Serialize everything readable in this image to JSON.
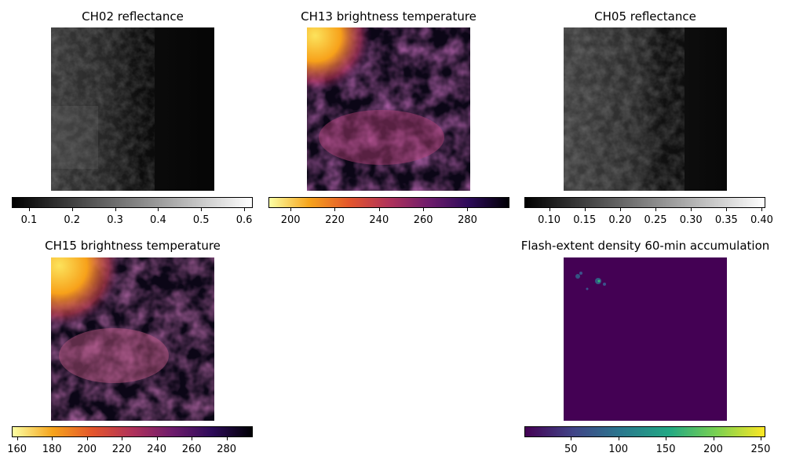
{
  "chart_data": [
    {
      "type": "heatmap",
      "title": "CH02 reflectance",
      "colormap": "gray",
      "colorbar_range": [
        0.06,
        0.62
      ],
      "colorbar_ticks": [
        "0.1",
        "0.2",
        "0.3",
        "0.4",
        "0.5",
        "0.6"
      ],
      "colorbar_tick_values": [
        0.1,
        0.2,
        0.3,
        0.4,
        0.5,
        0.6
      ]
    },
    {
      "type": "heatmap",
      "title": "CH13 brightness temperature",
      "colormap": "inferno_r",
      "colorbar_range": [
        190,
        299
      ],
      "colorbar_ticks": [
        "200",
        "220",
        "240",
        "260",
        "280"
      ],
      "colorbar_tick_values": [
        200,
        220,
        240,
        260,
        280
      ]
    },
    {
      "type": "heatmap",
      "title": "CH05 reflectance",
      "colormap": "gray",
      "colorbar_range": [
        0.065,
        0.405
      ],
      "colorbar_ticks": [
        "0.10",
        "0.15",
        "0.20",
        "0.25",
        "0.30",
        "0.35",
        "0.40"
      ],
      "colorbar_tick_values": [
        0.1,
        0.15,
        0.2,
        0.25,
        0.3,
        0.35,
        0.4
      ]
    },
    {
      "type": "heatmap",
      "title": "CH15 brightness temperature",
      "colormap": "inferno_r",
      "colorbar_range": [
        157,
        295
      ],
      "colorbar_ticks": [
        "160",
        "180",
        "200",
        "220",
        "240",
        "260",
        "280"
      ],
      "colorbar_tick_values": [
        160,
        180,
        200,
        220,
        240,
        260,
        280
      ]
    },
    {
      "type": "heatmap",
      "title": "Flash-extent density 60-min accumulation",
      "colormap": "viridis",
      "colorbar_range": [
        1,
        255
      ],
      "colorbar_ticks": [
        "50",
        "100",
        "150",
        "200",
        "250"
      ],
      "colorbar_tick_values": [
        50,
        100,
        150,
        200,
        250
      ]
    }
  ]
}
